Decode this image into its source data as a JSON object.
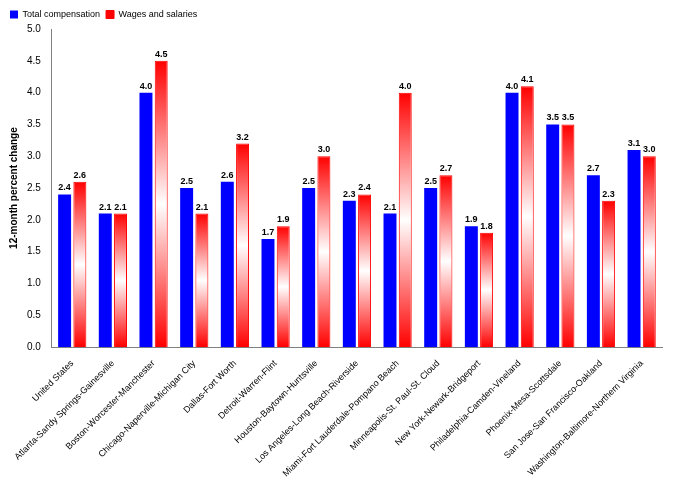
{
  "chart_data": {
    "type": "bar",
    "y_label": "12-month percent change",
    "categories": [
      "United States",
      "Atlanta-Sandy Springs-Gainesville",
      "Boston-Worcester-Manchester",
      "Chicago-Naperville-Michigan City",
      "Dallas-Fort Worth",
      "Detroit-Warren-Flint",
      "Houston-Baytown-Huntsville",
      "Los Angeles-Long Beach-Riverside",
      "Miami-Fort Lauderdale-Pompano Beach",
      "Minneapolis-St. Paul-St. Cloud",
      "New York-Newark-Bridgeport",
      "Philadelphia-Camden-Vineland",
      "Phoenix-Mesa-Scottsdale",
      "San Jose-San Francisco-Oakland",
      "Washington-Baltimore-Northern Virginia"
    ],
    "series": [
      {
        "name": "Total compensation",
        "color": "#0000ff",
        "values": [
          2.4,
          2.1,
          4.0,
          2.5,
          2.6,
          1.7,
          2.5,
          2.3,
          2.1,
          2.5,
          1.9,
          4.0,
          3.5,
          2.7,
          3.1
        ],
        "value_labels": [
          "2.4",
          "2.1",
          "4.0",
          "2.5",
          "2.6",
          "1.7",
          "2.5",
          "2.3",
          "2.1",
          "2.5",
          "1.9",
          "4.0",
          "3.5",
          "2.7",
          "3.1"
        ]
      },
      {
        "name": "Wages and salaries",
        "color": "#ff0000",
        "values": [
          2.6,
          2.1,
          4.5,
          2.1,
          3.2,
          1.9,
          3.0,
          2.4,
          4.0,
          2.7,
          1.8,
          4.1,
          3.5,
          2.3,
          3.0
        ],
        "value_labels": [
          "2.6",
          "2.1",
          "4.5",
          "2.1",
          "3.2",
          "1.9",
          "3.0",
          "2.4",
          "4.0",
          "2.7",
          "1.8",
          "4.1",
          "3.5",
          "2.3",
          "3.0"
        ]
      }
    ],
    "ylim": [
      0,
      5
    ],
    "yticks": [
      {
        "value": 0,
        "label": "0.0"
      },
      0.5,
      {
        "value": 1,
        "label": "1.0"
      },
      1.5,
      {
        "value": 2,
        "label": "2.0"
      },
      2.5,
      {
        "value": 3,
        "label": "3.0"
      },
      3.5,
      {
        "value": 4,
        "label": "4.0"
      },
      4.5,
      {
        "value": 5,
        "label": "5.0"
      }
    ],
    "grid": false,
    "legend": "top",
    "data_labels": true
  }
}
